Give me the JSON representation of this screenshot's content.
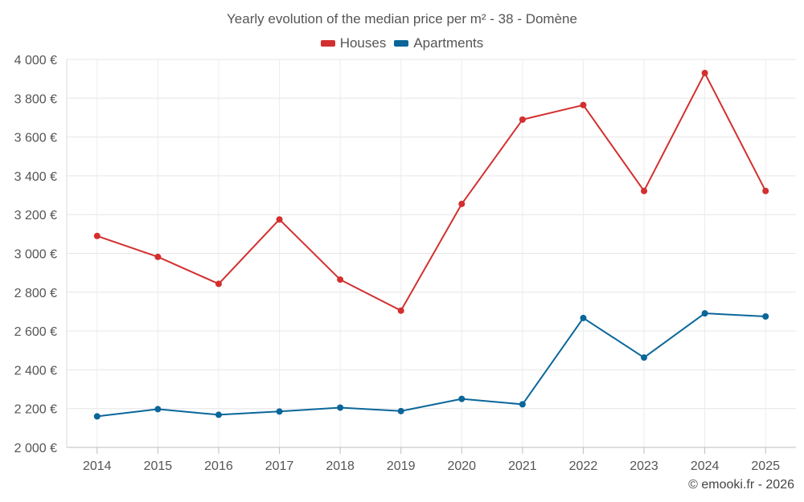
{
  "chart_data": {
    "type": "line",
    "title": "Yearly evolution of the median price per m² - 38 - Domène",
    "categories": [
      "2014",
      "2015",
      "2016",
      "2017",
      "2018",
      "2019",
      "2020",
      "2021",
      "2022",
      "2023",
      "2024",
      "2025"
    ],
    "series": [
      {
        "name": "Houses",
        "color": "#d32f2f",
        "values": [
          3090,
          2982,
          2843,
          3175,
          2865,
          2705,
          3255,
          3690,
          3765,
          3322,
          3930,
          3322
        ]
      },
      {
        "name": "Apartments",
        "color": "#0a6699",
        "values": [
          2160,
          2197,
          2168,
          2185,
          2205,
          2187,
          2250,
          2222,
          2667,
          2463,
          2691,
          2675
        ]
      }
    ],
    "yticks": [
      2000,
      2200,
      2400,
      2600,
      2800,
      3000,
      3200,
      3400,
      3600,
      3800,
      4000
    ],
    "ytick_labels": [
      "2 000 €",
      "2 200 €",
      "2 400 €",
      "2 600 €",
      "2 800 €",
      "3 000 €",
      "3 200 €",
      "3 400 €",
      "3 600 €",
      "3 800 €",
      "4 000 €"
    ],
    "ylim": [
      2000,
      4000
    ],
    "xlabel": "",
    "ylabel": "",
    "legend_position": "top-center",
    "grid": true,
    "credit": "© emooki.fr - 2026"
  }
}
